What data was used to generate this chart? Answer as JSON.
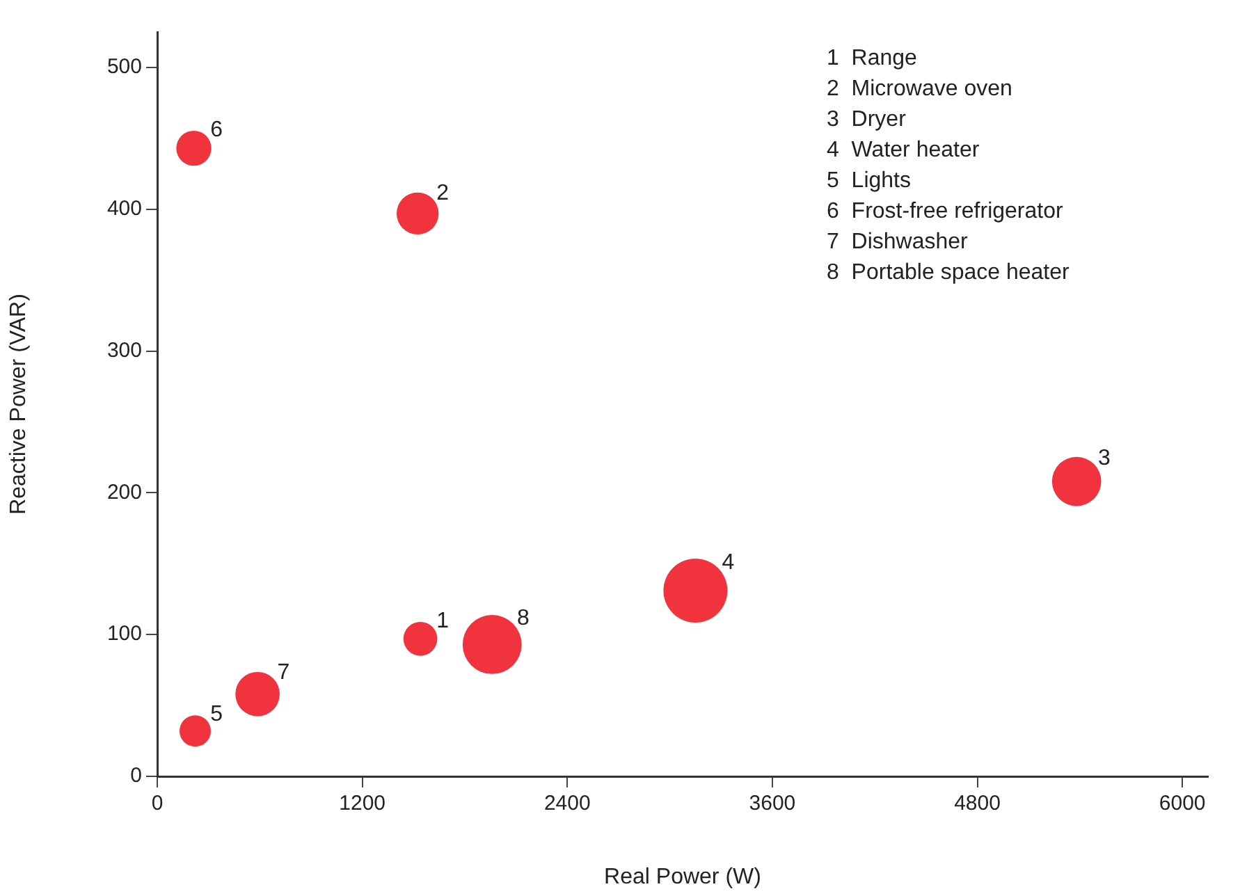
{
  "chart_data": {
    "type": "bubble",
    "xlabel": "Real Power (W)",
    "ylabel": "Reactive Power (VAR)",
    "x": [
      1540,
      1524,
      5381,
      3150,
      222,
      214,
      587,
      1960
    ],
    "values": [
      97,
      397,
      208,
      131,
      32,
      443,
      58,
      93
    ],
    "sizes": [
      0.28,
      0.43,
      0.59,
      1,
      0.24,
      0.3,
      0.48,
      0.85
    ],
    "color": "#f0333d",
    "xlim": [
      0,
      6150
    ],
    "xticks": [
      0,
      1200,
      2400,
      3600,
      4800,
      6000
    ],
    "ylim": [
      0,
      525
    ],
    "yticks": [
      0,
      100,
      200,
      300,
      400,
      500
    ],
    "annotations": [
      "1",
      "2",
      "3",
      "4",
      "5",
      "6",
      "7",
      "8",
      "1  Range",
      "2  Microwave oven",
      "3  Dryer",
      "4  Water heater",
      "5  Lights",
      "6  Frost-free refrigerator",
      "7  Dishwasher",
      "8  Portable space heater"
    ]
  }
}
